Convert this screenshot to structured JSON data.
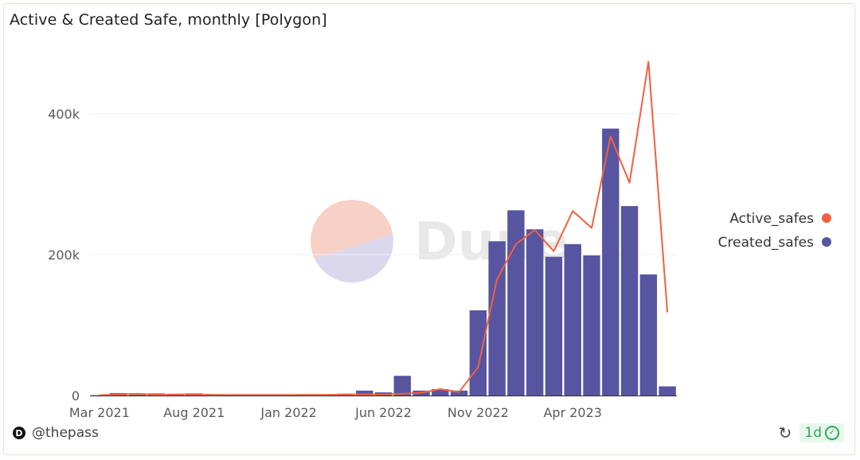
{
  "title": "Active & Created Safe, monthly [Polygon]",
  "author": "@thepass",
  "freshness": "1d",
  "watermark": "Dune",
  "icons": {
    "author_logo": "dune-profile-logo-icon",
    "refresh": "refresh-icon",
    "check": "check-circle-icon"
  },
  "colors": {
    "active": "#f2603f",
    "created": "#5755a0",
    "watermark_pie_a": "#f6c9bc",
    "watermark_pie_b": "#d5d2ea"
  },
  "chart_data": {
    "type": "bar+line",
    "title": "Active & Created Safe, monthly [Polygon]",
    "xlabel": "",
    "ylabel": "",
    "ylim": [
      0,
      480000
    ],
    "yticks": [
      0,
      200000,
      400000
    ],
    "ytick_labels": [
      "0",
      "200k",
      "400k"
    ],
    "x_tick_labels": [
      "Mar 2021",
      "Aug 2021",
      "Jan 2022",
      "Jun 2022",
      "Nov 2022",
      "Apr 2023"
    ],
    "x_tick_indices": [
      0,
      5,
      10,
      15,
      20,
      25
    ],
    "categories": [
      "2021-03",
      "2021-04",
      "2021-05",
      "2021-06",
      "2021-07",
      "2021-08",
      "2021-09",
      "2021-10",
      "2021-11",
      "2021-12",
      "2022-01",
      "2022-02",
      "2022-03",
      "2022-04",
      "2022-05",
      "2022-06",
      "2022-07",
      "2022-08",
      "2022-09",
      "2022-10",
      "2022-11",
      "2022-12",
      "2023-01",
      "2023-02",
      "2023-03",
      "2023-04",
      "2023-05",
      "2023-06",
      "2023-07",
      "2023-08",
      "2023-09"
    ],
    "legend_position": "right",
    "series": [
      {
        "name": "Active_safes",
        "type": "line",
        "values": [
          500,
          1500,
          2500,
          1000,
          1500,
          1500,
          1000,
          800,
          800,
          900,
          900,
          1000,
          1000,
          1500,
          1500,
          1500,
          2500,
          4000,
          9000,
          5000,
          40000,
          165000,
          215000,
          235000,
          205000,
          262000,
          238000,
          368000,
          302000,
          474000,
          118000
        ]
      },
      {
        "name": "Created_safes",
        "type": "bar",
        "values": [
          500,
          3500,
          1000,
          3000,
          1000,
          3000,
          1000,
          1000,
          1000,
          1000,
          1000,
          1500,
          1500,
          2500,
          7000,
          4500,
          28000,
          7000,
          9000,
          7000,
          121000,
          219000,
          263000,
          236000,
          197000,
          215000,
          199000,
          379000,
          269000,
          172000,
          13000
        ]
      }
    ]
  }
}
